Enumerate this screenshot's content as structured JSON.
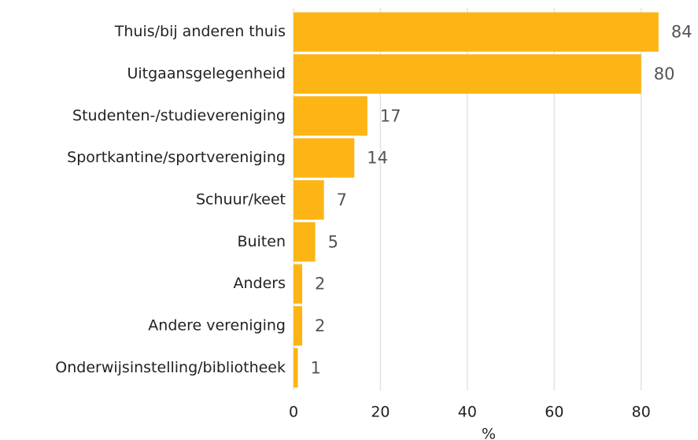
{
  "chart_data": {
    "type": "bar",
    "orientation": "horizontal",
    "categories": [
      "Thuis/bij anderen thuis",
      "Uitgaansgelegenheid",
      "Studenten-/studievereniging",
      "Sportkantine/sportvereniging",
      "Schuur/keet",
      "Buiten",
      "Anders",
      "Andere vereniging",
      "Onderwijsinstelling/bibliotheek"
    ],
    "values": [
      84,
      80,
      17,
      14,
      7,
      5,
      2,
      2,
      1
    ],
    "color": "#fdb515",
    "xlabel": "%",
    "xlim": [
      0,
      90
    ],
    "xticks": [
      0,
      20,
      40,
      60,
      80
    ],
    "grid": true
  }
}
